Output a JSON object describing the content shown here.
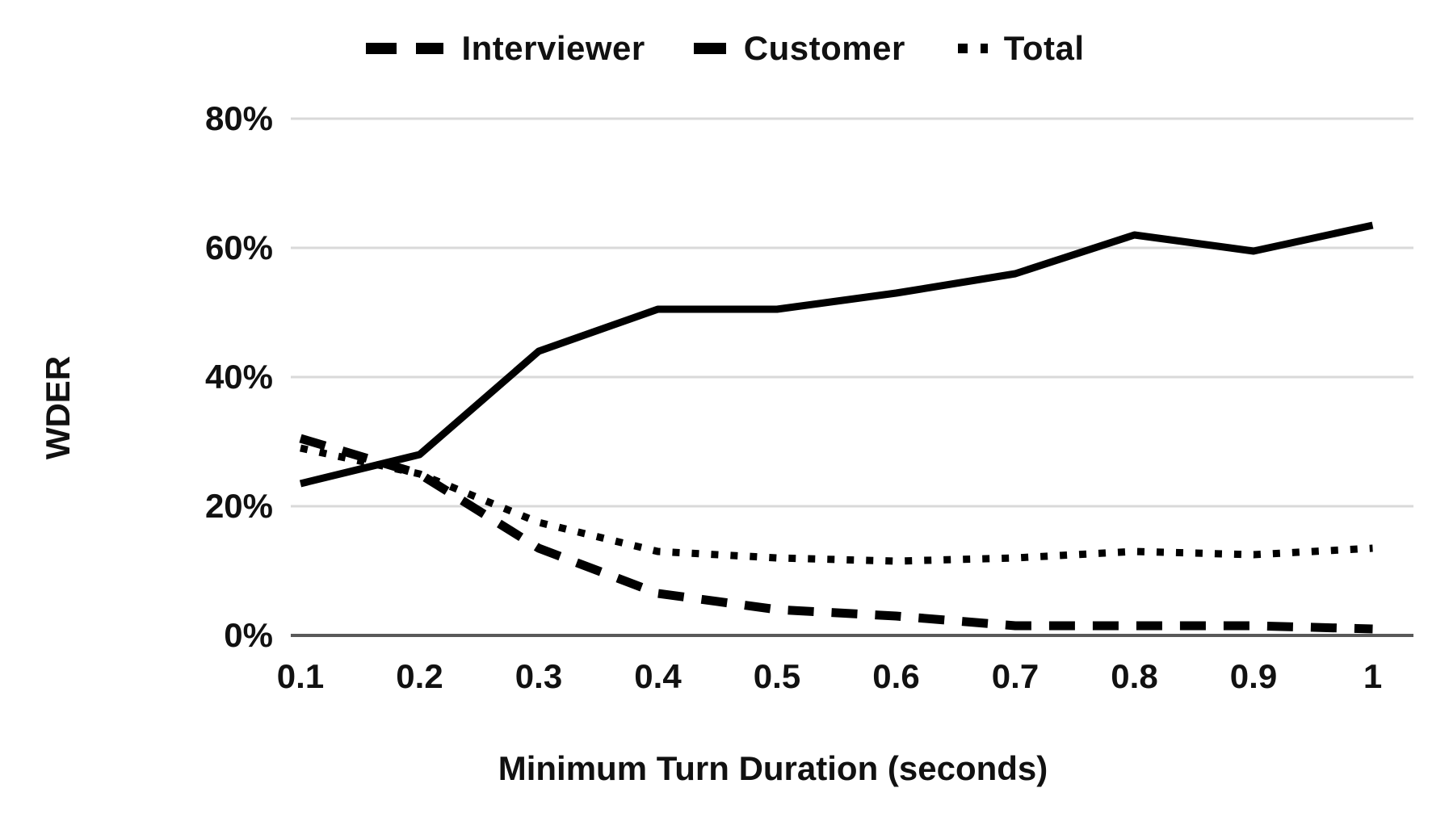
{
  "chart_data": {
    "type": "line",
    "title": "",
    "xlabel": "Minimum Turn Duration (seconds)",
    "ylabel": "WDER",
    "x": [
      0.1,
      0.2,
      0.3,
      0.4,
      0.5,
      0.6,
      0.7,
      0.8,
      0.9,
      1
    ],
    "x_tick_labels": [
      "0.1",
      "0.2",
      "0.3",
      "0.4",
      "0.5",
      "0.6",
      "0.7",
      "0.8",
      "0.9",
      "1"
    ],
    "y_ticks": [
      0,
      20,
      40,
      60,
      80
    ],
    "y_tick_labels": [
      "0%",
      "20%",
      "40%",
      "60%",
      "80%"
    ],
    "ylim": [
      0,
      80
    ],
    "grid": "horizontal-only",
    "legend_position": "top-center",
    "series": [
      {
        "name": "Interviewer",
        "style": "long-dash",
        "values": [
          30.5,
          25,
          13.5,
          6.5,
          4,
          3,
          1.5,
          1.5,
          1.5,
          1
        ]
      },
      {
        "name": "Customer",
        "style": "solid",
        "values": [
          23.5,
          28,
          44,
          50.5,
          50.5,
          53,
          56,
          62,
          59.5,
          63.5
        ]
      },
      {
        "name": "Total",
        "style": "dotted",
        "values": [
          29,
          25,
          17.5,
          13,
          12,
          11.5,
          12,
          13,
          12.5,
          13.5
        ]
      }
    ],
    "colors": {
      "line": "#000000",
      "gridline": "#d9d9d9",
      "axis_line": "#595959",
      "text": "#111111"
    }
  }
}
